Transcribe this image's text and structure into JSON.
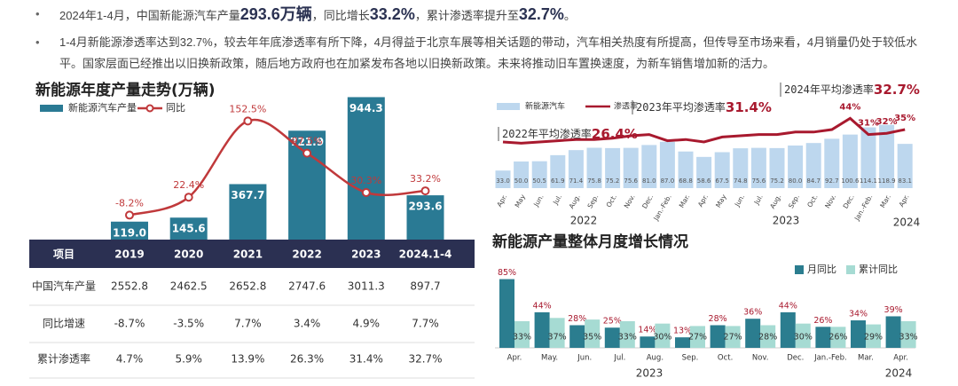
{
  "bullets": [
    [
      "2024年1-4月，中国新能源汽车产量",
      "293.6万辆",
      "，同比增长",
      "33.2%",
      "，累计渗透率提升至",
      "32.7%",
      "。"
    ],
    "1-4月新能源渗透率达到32.7%，较去年年底渗透率有所下降，4月得益于北京车展等相关话题的带动，汽车相关热度有所提高，但传导至市场来看，4月销量仍处于较低水平。国家层面已经推出以旧换新政策，随后地方政府也在加紧发布各地以旧换新政策。未来将推动旧车置换速度，为新车销售增加新的活力。"
  ],
  "chart_data": [
    {
      "type": "bar_line",
      "title": "新能源年度产量走势(万辆)",
      "categories": [
        "2019",
        "2020",
        "2021",
        "2022",
        "2023",
        "2024.1-4"
      ],
      "series": [
        {
          "name": "新能源汽车产量",
          "type": "bar",
          "color": "#2a7a94",
          "values": [
            119.0,
            145.6,
            367.7,
            721.9,
            944.3,
            293.6
          ],
          "value_labels": [
            "119.0",
            "145.6",
            "367.7",
            "721.9",
            "944.3",
            "293.6"
          ]
        },
        {
          "name": "同比",
          "type": "line",
          "axis": "y2",
          "smooth": true,
          "markers": true,
          "color": "#c0393b",
          "values": [
            -8.2,
            22.4,
            152.5,
            97.5,
            30.3,
            33.2
          ],
          "value_labels": [
            "-8.2%",
            "22.4%",
            "152.5%",
            "97.5%",
            "30.3%",
            "33.2%"
          ]
        }
      ],
      "ylim": [
        0,
        1000
      ],
      "y2lim": [
        -50,
        200
      ]
    },
    {
      "type": "bar_line",
      "categories": [
        "Apr.",
        "May",
        "Jun.",
        "Jul.",
        "Aug.",
        "Sep.",
        "Oct.",
        "Nov.",
        "Dec.",
        "Jan.-Feb.",
        "Mar.",
        "Apr.",
        "May",
        "Jun.",
        "Jul.",
        "Aug.",
        "Sep.",
        "Oct.",
        "Nov.",
        "Dec.",
        "Jan.-Feb.",
        "Mar.",
        "Apr."
      ],
      "series": [
        {
          "name": "新能源汽车",
          "type": "bar",
          "color": "#bdd7ee",
          "values": [
            33.0,
            50.0,
            50.5,
            61.9,
            71.4,
            75.8,
            75.2,
            75.6,
            81.0,
            87.0,
            68.8,
            58.6,
            67.5,
            74.8,
            75.6,
            75.2,
            80.0,
            84.7,
            92.7,
            100.6,
            114.1,
            118.9,
            83.1
          ],
          "value_labels": [
            "33.0",
            "50.0",
            "50.5",
            "61.9",
            "71.4",
            "75.8",
            "75.2",
            "75.6",
            "81.0",
            "87.0",
            "68.8",
            "58.6",
            "67.5",
            "74.8",
            "75.6",
            "75.2",
            "80.0",
            "84.7",
            "92.7",
            "100.6",
            "114.1",
            "118.9",
            "83.1"
          ]
        },
        {
          "name": "渗透率",
          "type": "line",
          "axis": "y2",
          "smooth": false,
          "markers": false,
          "color": "#a8192e",
          "values": [
            25,
            24,
            25,
            26,
            27,
            27,
            28,
            30,
            31,
            26,
            27,
            25,
            29,
            30,
            31,
            31,
            33,
            33,
            35,
            44,
            31,
            32,
            35
          ],
          "value_labels": [
            null,
            null,
            null,
            null,
            null,
            null,
            null,
            null,
            null,
            null,
            null,
            null,
            null,
            null,
            null,
            null,
            null,
            null,
            null,
            "44%",
            "31%",
            "32%",
            "35%"
          ]
        }
      ],
      "ylim": [
        0,
        150
      ],
      "y2lim": [
        0,
        50
      ],
      "annotations": [
        {
          "text": "2022年平均渗透率",
          "label": "26.4%"
        },
        {
          "text": "2023年平均渗透率",
          "label": "31.4%"
        },
        {
          "text": "2024年平均渗透率",
          "label": "32.7%"
        }
      ],
      "year_labels": [
        "2022",
        "2023",
        "2024"
      ]
    },
    {
      "type": "grouped_bar",
      "title": "新能源产量整体月度增长情况",
      "categories": [
        "Apr.",
        "May.",
        "Jun.",
        "Jul.",
        "Aug.",
        "Sep.",
        "Oct.",
        "Nov.",
        "Dec.",
        "Jan.-Feb.",
        "Mar.",
        "Apr."
      ],
      "series": [
        {
          "name": "月同比",
          "color": "#2b7d8f",
          "values": [
            85,
            44,
            28,
            25,
            14,
            13,
            28,
            36,
            44,
            26,
            34,
            39
          ],
          "value_labels": [
            "85%",
            "44%",
            "28%",
            "25%",
            "14%",
            "13%",
            "28%",
            "36%",
            "44%",
            "26%",
            "34%",
            "39%"
          ]
        },
        {
          "name": "累计同比",
          "color": "#a6dbd3",
          "values": [
            33,
            37,
            35,
            33,
            30,
            27,
            27,
            28,
            30,
            26,
            29,
            33
          ],
          "value_labels": [
            "33%",
            "37%",
            "35%",
            "33%",
            "30%",
            "27%",
            "27%",
            "28%",
            "30%",
            "26%",
            "29%",
            "33%"
          ]
        }
      ],
      "ylim": [
        0,
        90
      ],
      "year_labels": [
        "2023",
        "2024"
      ]
    }
  ],
  "table": {
    "header": "项目",
    "rows": [
      [
        "中国汽车产量",
        "2552.8",
        "2462.5",
        "2652.8",
        "2747.6",
        "3011.3",
        "897.7"
      ],
      [
        "同比增速",
        "-8.7%",
        "-3.5%",
        "7.7%",
        "3.4%",
        "4.9%",
        "7.7%"
      ],
      [
        "累计渗透率",
        "4.7%",
        "5.9%",
        "13.9%",
        "26.3%",
        "31.4%",
        "32.7%"
      ]
    ]
  }
}
